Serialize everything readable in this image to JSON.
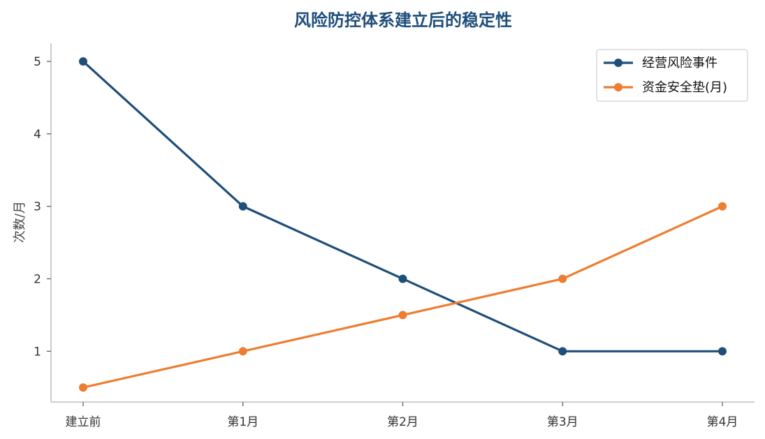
{
  "chart_data": {
    "type": "line",
    "title": "风险防控体系建立后的稳定性",
    "xlabel": "",
    "ylabel": "次数/月",
    "categories": [
      "建立前",
      "第1月",
      "第2月",
      "第3月",
      "第4月"
    ],
    "ylim": [
      0.3,
      5.25
    ],
    "yticks": [
      1,
      2,
      3,
      4,
      5
    ],
    "grid": false,
    "legend_position": "top-right",
    "series": [
      {
        "name": "经营风险事件",
        "color": "#1f4e79",
        "values": [
          5,
          3,
          2,
          1,
          1
        ]
      },
      {
        "name": "资金安全垫(月)",
        "color": "#ed7d31",
        "values": [
          0.5,
          1,
          1.5,
          2,
          3
        ]
      }
    ]
  }
}
